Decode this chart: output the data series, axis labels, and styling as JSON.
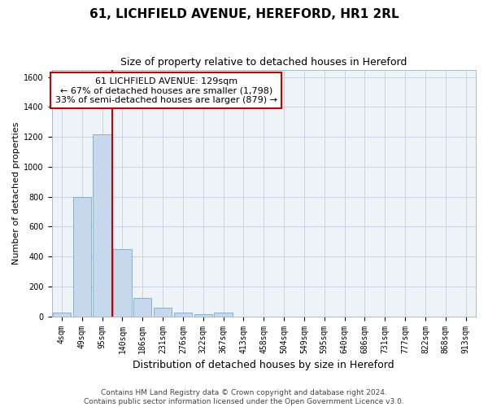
{
  "title": "61, LICHFIELD AVENUE, HEREFORD, HR1 2RL",
  "subtitle": "Size of property relative to detached houses in Hereford",
  "xlabel": "Distribution of detached houses by size in Hereford",
  "ylabel": "Number of detached properties",
  "bin_labels": [
    "4sqm",
    "49sqm",
    "95sqm",
    "140sqm",
    "186sqm",
    "231sqm",
    "276sqm",
    "322sqm",
    "367sqm",
    "413sqm",
    "458sqm",
    "504sqm",
    "549sqm",
    "595sqm",
    "640sqm",
    "686sqm",
    "731sqm",
    "777sqm",
    "822sqm",
    "868sqm",
    "913sqm"
  ],
  "bar_heights": [
    25,
    800,
    1220,
    450,
    125,
    60,
    25,
    15,
    25,
    0,
    0,
    0,
    0,
    0,
    0,
    0,
    0,
    0,
    0,
    0,
    0
  ],
  "bar_color": "#c8d8ec",
  "bar_edge_color": "#7099bb",
  "red_line_x": 2.5,
  "ylim": [
    0,
    1650
  ],
  "yticks": [
    0,
    200,
    400,
    600,
    800,
    1000,
    1200,
    1400,
    1600
  ],
  "annotation_line1": "61 LICHFIELD AVENUE: 129sqm",
  "annotation_line2": "← 67% of detached houses are smaller (1,798)",
  "annotation_line3": "33% of semi-detached houses are larger (879) →",
  "annotation_box_color": "#ffffff",
  "annotation_box_edge_color": "#cc0000",
  "footer_text": "Contains HM Land Registry data © Crown copyright and database right 2024.\nContains public sector information licensed under the Open Government Licence v3.0.",
  "plot_bg_color": "#eef3f8",
  "fig_bg_color": "#ffffff",
  "grid_color": "#c8d4e0",
  "title_fontsize": 11,
  "subtitle_fontsize": 9,
  "xlabel_fontsize": 9,
  "ylabel_fontsize": 8,
  "tick_fontsize": 7,
  "annot_fontsize": 8,
  "footer_fontsize": 6.5
}
